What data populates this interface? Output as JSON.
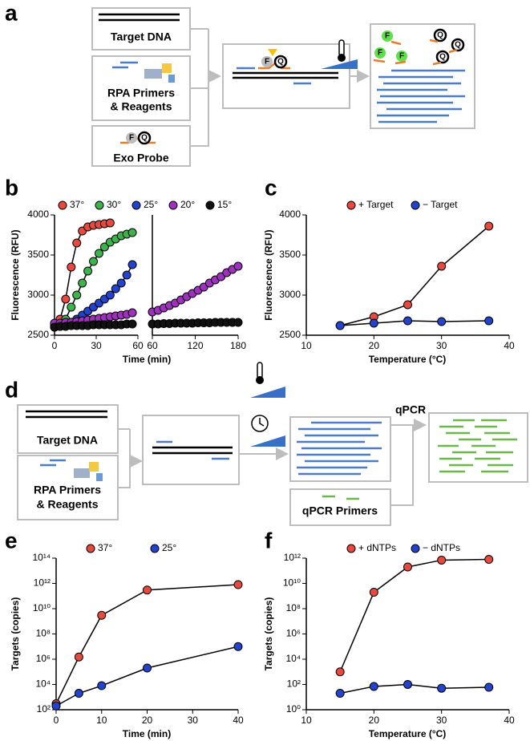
{
  "panel_labels": [
    "a",
    "b",
    "c",
    "d",
    "e",
    "f"
  ],
  "diagram_a": {
    "target": "Target DNA",
    "reagents": [
      "RPA Primers",
      "& Reagents"
    ],
    "probe": "Exo Probe",
    "probe_letters": [
      "F",
      "Q"
    ]
  },
  "diagram_d": {
    "target": "Target DNA",
    "reagents": [
      "RPA Primers",
      "& Reagents"
    ],
    "step": "qPCR",
    "primers": "qPCR Primers"
  },
  "chart_data": [
    {
      "type": "line",
      "xlabel": "Time (min)",
      "ylabel": "Fluorescence (RFU)",
      "xlim": [
        0,
        60
      ],
      "xticks": [
        0,
        30,
        60
      ],
      "ylim": [
        2500,
        4000
      ],
      "yticks": [
        2500,
        3000,
        3500,
        4000
      ],
      "series": [
        {
          "name": "37°",
          "color": "#e8493f",
          "x": [
            0,
            4,
            8,
            12,
            16,
            20,
            24,
            28,
            32,
            36,
            40
          ],
          "values": [
            2620,
            2700,
            2950,
            3350,
            3650,
            3800,
            3850,
            3870,
            3880,
            3890,
            3900
          ]
        },
        {
          "name": "30°",
          "color": "#3cb44b",
          "x": [
            0,
            4,
            8,
            12,
            16,
            20,
            24,
            28,
            32,
            36,
            40,
            44,
            48,
            52,
            56
          ],
          "values": [
            2620,
            2640,
            2700,
            2850,
            3000,
            3150,
            3300,
            3420,
            3520,
            3600,
            3660,
            3700,
            3740,
            3760,
            3780
          ]
        },
        {
          "name": "25°",
          "color": "#2244cc",
          "x": [
            0,
            4,
            8,
            12,
            16,
            20,
            24,
            28,
            32,
            36,
            40,
            44,
            48,
            52,
            56
          ],
          "values": [
            2600,
            2610,
            2630,
            2660,
            2700,
            2750,
            2800,
            2850,
            2900,
            2950,
            3000,
            3080,
            3150,
            3250,
            3380
          ]
        },
        {
          "name": "20°",
          "color": "#a030c0",
          "x": [
            0,
            4,
            8,
            12,
            16,
            20,
            24,
            28,
            32,
            36,
            40,
            44,
            48,
            52,
            56
          ],
          "values": [
            2650,
            2650,
            2660,
            2660,
            2670,
            2680,
            2690,
            2700,
            2710,
            2720,
            2730,
            2740,
            2750,
            2760,
            2780
          ]
        },
        {
          "name": "15°",
          "color": "#111111",
          "x": [
            0,
            4,
            8,
            12,
            16,
            20,
            24,
            28,
            32,
            36,
            40,
            44,
            48,
            52,
            56
          ],
          "values": [
            2600,
            2610,
            2610,
            2620,
            2620,
            2620,
            2620,
            2630,
            2630,
            2630,
            2630,
            2630,
            2630,
            2640,
            2640
          ]
        }
      ]
    },
    {
      "type": "line",
      "xlim": [
        60,
        180
      ],
      "xticks": [
        60,
        120,
        180
      ],
      "ylim": [
        2500,
        4000
      ],
      "series": [
        {
          "color": "#a030c0",
          "x": [
            60,
            68,
            76,
            84,
            92,
            100,
            108,
            116,
            124,
            132,
            140,
            148,
            156,
            164,
            172,
            180
          ],
          "values": [
            2790,
            2810,
            2840,
            2870,
            2900,
            2940,
            2980,
            3020,
            3060,
            3100,
            3150,
            3190,
            3230,
            3280,
            3320,
            3360
          ]
        },
        {
          "color": "#111111",
          "x": [
            60,
            68,
            76,
            84,
            92,
            100,
            108,
            116,
            124,
            132,
            140,
            148,
            156,
            164,
            172,
            180
          ],
          "values": [
            2640,
            2640,
            2645,
            2645,
            2650,
            2650,
            2650,
            2650,
            2655,
            2655,
            2655,
            2660,
            2660,
            2660,
            2660,
            2660
          ]
        }
      ]
    },
    {
      "type": "line",
      "xlabel": "Temperature (°C)",
      "ylabel": "Fluorescence (RFU)",
      "xlim": [
        10,
        40
      ],
      "xticks": [
        10,
        20,
        30,
        40
      ],
      "ylim": [
        2500,
        4000
      ],
      "yticks": [
        2500,
        3000,
        3500,
        4000
      ],
      "series": [
        {
          "name": "+ Target",
          "color": "#e8493f",
          "x": [
            15,
            20,
            25,
            30,
            37
          ],
          "values": [
            2620,
            2730,
            2880,
            3360,
            3860
          ]
        },
        {
          "name": "− Target",
          "color": "#2244cc",
          "x": [
            15,
            20,
            25,
            30,
            37
          ],
          "values": [
            2620,
            2650,
            2680,
            2670,
            2680
          ]
        }
      ]
    },
    {
      "type": "line",
      "log_y": true,
      "xlabel": "Time (min)",
      "ylabel": "Targets (copies)",
      "xlim": [
        0,
        40
      ],
      "xticks": [
        0,
        10,
        20,
        30,
        40
      ],
      "ylim": [
        100,
        100000000000000
      ],
      "yticks": [
        {
          "value": 100,
          "label": "10²"
        },
        {
          "value": 10000,
          "label": "10⁴"
        },
        {
          "value": 1000000,
          "label": "10⁶"
        },
        {
          "value": 100000000,
          "label": "10⁸"
        },
        {
          "value": 10000000000,
          "label": "10¹⁰"
        },
        {
          "value": 1000000000000,
          "label": "10¹²"
        },
        {
          "value": 100000000000000,
          "label": "10¹⁴"
        }
      ],
      "series": [
        {
          "name": "37°",
          "color": "#e8493f",
          "x": [
            0,
            5,
            10,
            20,
            40
          ],
          "values": [
            300,
            1500000,
            3000000000,
            300000000000,
            800000000000
          ]
        },
        {
          "name": "25°",
          "color": "#2244cc",
          "x": [
            0,
            5,
            10,
            20,
            40
          ],
          "values": [
            200,
            2000,
            8000,
            200000,
            10000000
          ]
        }
      ]
    },
    {
      "type": "line",
      "log_y": true,
      "xlabel": "Temperature (°C)",
      "ylabel": "Targets (copies)",
      "xlim": [
        10,
        40
      ],
      "xticks": [
        10,
        20,
        30,
        40
      ],
      "ylim": [
        1,
        1000000000000
      ],
      "yticks": [
        {
          "value": 1,
          "label": "10⁰"
        },
        {
          "value": 100,
          "label": "10²"
        },
        {
          "value": 10000,
          "label": "10⁴"
        },
        {
          "value": 1000000,
          "label": "10⁶"
        },
        {
          "value": 100000000,
          "label": "10⁸"
        },
        {
          "value": 10000000000,
          "label": "10¹⁰"
        },
        {
          "value": 1000000000000,
          "label": "10¹²"
        }
      ],
      "series": [
        {
          "name": "+ dNTPs",
          "color": "#e8493f",
          "x": [
            15,
            20,
            25,
            30,
            37
          ],
          "values": [
            1000,
            2000000000,
            200000000000,
            700000000000,
            800000000000
          ]
        },
        {
          "name": "− dNTPs",
          "color": "#2244cc",
          "x": [
            15,
            20,
            25,
            30,
            37
          ],
          "values": [
            20,
            70,
            100,
            50,
            60
          ]
        }
      ]
    }
  ]
}
